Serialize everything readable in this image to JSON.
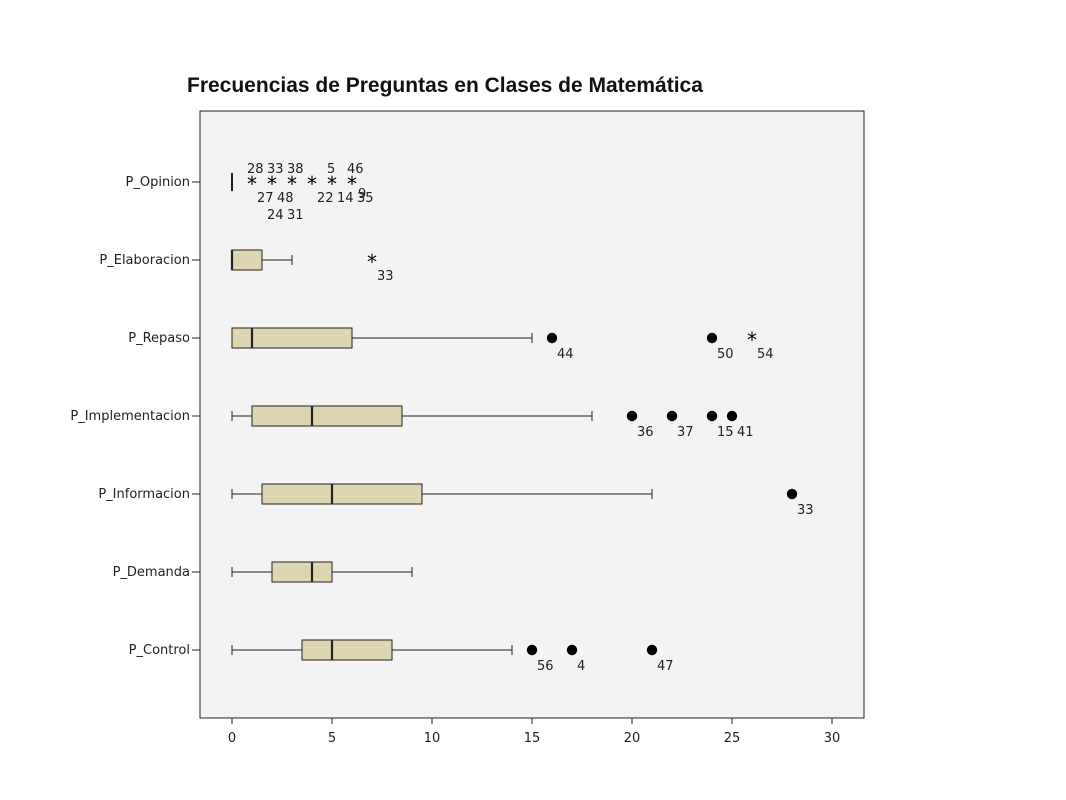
{
  "chart_data": {
    "type": "boxplot",
    "title": "Frecuencias de Preguntas en Clases de Matemática",
    "orientation": "horizontal",
    "xlim": [
      -1.5,
      31.7
    ],
    "x_ticks": [
      0,
      5,
      10,
      15,
      20,
      25,
      30
    ],
    "grid": false,
    "colors": {
      "box_fill": "#ddd6b0",
      "plot_bg": "#f3f3f3",
      "stroke": "#222222"
    },
    "categories": [
      "P_Opinion",
      "P_Elaboracion",
      "P_Repaso",
      "P_Implementacion",
      "P_Informacion",
      "P_Demanda",
      "P_Control"
    ],
    "boxes": [
      {
        "category": "P_Opinion",
        "whisker_low": 0,
        "q1": 0,
        "median": 0,
        "q3": 0,
        "whisker_high": 0,
        "outliers": [
          {
            "x": 1,
            "marker": "star",
            "labels": [
              {
                "text": "28",
                "pos": "above"
              },
              {
                "text": "27",
                "pos": "below"
              }
            ]
          },
          {
            "x": 2,
            "marker": "star",
            "labels": [
              {
                "text": "33",
                "pos": "above"
              },
              {
                "text": "48",
                "pos": "below"
              },
              {
                "text": "24",
                "pos": "below2"
              }
            ]
          },
          {
            "x": 3,
            "marker": "star",
            "labels": [
              {
                "text": "38",
                "pos": "above"
              },
              {
                "text": "31",
                "pos": "below2"
              }
            ]
          },
          {
            "x": 4,
            "marker": "star",
            "labels": [
              {
                "text": "22",
                "pos": "below"
              }
            ]
          },
          {
            "x": 5,
            "marker": "star",
            "labels": [
              {
                "text": "5",
                "pos": "above"
              },
              {
                "text": "14",
                "pos": "below"
              }
            ]
          },
          {
            "x": 6,
            "marker": "star",
            "labels": [
              {
                "text": "46",
                "pos": "above"
              },
              {
                "text": "35",
                "pos": "below"
              },
              {
                "text": "9",
                "pos": "below-right"
              }
            ]
          }
        ]
      },
      {
        "category": "P_Elaboracion",
        "whisker_low": 0,
        "q1": 0,
        "median": 0,
        "q3": 1.5,
        "whisker_high": 3,
        "outliers": [
          {
            "x": 7,
            "marker": "star",
            "labels": [
              {
                "text": "33",
                "pos": "below"
              }
            ]
          }
        ]
      },
      {
        "category": "P_Repaso",
        "whisker_low": 0,
        "q1": 0,
        "median": 1,
        "q3": 6,
        "whisker_high": 15,
        "outliers": [
          {
            "x": 16,
            "marker": "dot",
            "labels": [
              {
                "text": "44",
                "pos": "below"
              }
            ]
          },
          {
            "x": 24,
            "marker": "dot",
            "labels": [
              {
                "text": "50",
                "pos": "below"
              }
            ]
          },
          {
            "x": 26,
            "marker": "star",
            "labels": [
              {
                "text": "54",
                "pos": "below"
              }
            ]
          }
        ]
      },
      {
        "category": "P_Implementacion",
        "whisker_low": 0,
        "q1": 1,
        "median": 4,
        "q3": 8.5,
        "whisker_high": 18,
        "outliers": [
          {
            "x": 20,
            "marker": "dot",
            "labels": [
              {
                "text": "36",
                "pos": "below"
              }
            ]
          },
          {
            "x": 22,
            "marker": "dot",
            "labels": [
              {
                "text": "37",
                "pos": "below"
              }
            ]
          },
          {
            "x": 24,
            "marker": "dot",
            "labels": [
              {
                "text": "15",
                "pos": "below"
              }
            ]
          },
          {
            "x": 25,
            "marker": "dot",
            "labels": [
              {
                "text": "41",
                "pos": "below"
              }
            ]
          }
        ]
      },
      {
        "category": "P_Informacion",
        "whisker_low": 0,
        "q1": 1.5,
        "median": 5,
        "q3": 9.5,
        "whisker_high": 21,
        "outliers": [
          {
            "x": 28,
            "marker": "dot",
            "labels": [
              {
                "text": "33",
                "pos": "below"
              }
            ]
          }
        ]
      },
      {
        "category": "P_Demanda",
        "whisker_low": 0,
        "q1": 2,
        "median": 4,
        "q3": 5,
        "whisker_high": 9,
        "outliers": []
      },
      {
        "category": "P_Control",
        "whisker_low": 0,
        "q1": 3.5,
        "median": 5,
        "q3": 8,
        "whisker_high": 14,
        "outliers": [
          {
            "x": 15,
            "marker": "dot",
            "labels": [
              {
                "text": "56",
                "pos": "below"
              }
            ]
          },
          {
            "x": 17,
            "marker": "dot",
            "labels": [
              {
                "text": "4",
                "pos": "below"
              }
            ]
          },
          {
            "x": 21,
            "marker": "dot",
            "labels": [
              {
                "text": "47",
                "pos": "below"
              }
            ]
          }
        ]
      }
    ]
  }
}
